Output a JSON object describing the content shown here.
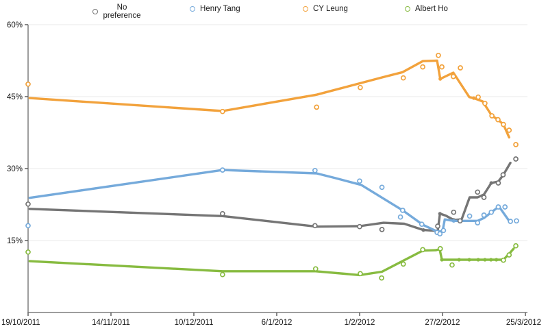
{
  "page": {
    "background": "#ffffff",
    "title": ""
  },
  "colors": {
    "grid": "#e8e8e8",
    "axis": "#7d7d7d",
    "tick": "#5f5f5f",
    "label": "#161616"
  },
  "chart_data": {
    "type": "line",
    "title": "",
    "xlabel": "",
    "ylabel": "",
    "legend_position": "top",
    "grid": true,
    "x_axis": {
      "tick_labels": [
        "19/10/2011",
        "14/11/2011",
        "10/12/2011",
        "6/1/2012",
        "1/2/2012",
        "27/2/2012",
        "25/3/2012"
      ],
      "tick_days": [
        0,
        26,
        52,
        78,
        104,
        130,
        156
      ],
      "unit": "day offset from 19/10/2011"
    },
    "y_axis": {
      "tick_labels": [
        "60%",
        "45%",
        "30%",
        "15%"
      ],
      "tick_values": [
        60,
        45,
        30,
        15
      ],
      "min": 0,
      "max": 60,
      "unit": "%"
    },
    "series": [
      {
        "name": "No preference",
        "color": "#757575",
        "scatter": [
          [
            0,
            22.6
          ],
          [
            61,
            20.6
          ],
          [
            90,
            18.1
          ],
          [
            104,
            17.9
          ],
          [
            111,
            17.3
          ],
          [
            128.5,
            18.0
          ],
          [
            133.5,
            20.9
          ],
          [
            135.5,
            19.1
          ],
          [
            141,
            25.1
          ],
          [
            143,
            24.0
          ],
          [
            147.5,
            27.0
          ],
          [
            149,
            28.7
          ],
          [
            153,
            32.0
          ]
        ],
        "trend": [
          [
            0.5,
            21.6
          ],
          [
            61,
            20.1
          ],
          [
            90.5,
            17.9
          ],
          [
            104,
            18.0
          ],
          [
            111.5,
            18.7
          ],
          [
            118,
            18.5
          ],
          [
            124,
            17.2
          ],
          [
            128.5,
            17.0
          ],
          [
            129.2,
            20.6
          ],
          [
            131,
            20.2
          ],
          [
            133.5,
            19.3
          ],
          [
            136,
            19.4
          ],
          [
            138.5,
            24.0
          ],
          [
            141,
            24.0
          ],
          [
            143,
            24.6
          ],
          [
            145.3,
            27.0
          ],
          [
            147.5,
            27.3
          ],
          [
            149,
            28.6
          ],
          [
            151.3,
            31.2
          ]
        ],
        "trend_dots": [
          [
            124,
            17.2
          ],
          [
            129.2,
            20.6
          ],
          [
            133.5,
            19.3
          ],
          [
            145.3,
            27.0
          ]
        ]
      },
      {
        "name": "Henry Tang",
        "color": "#75aadb",
        "scatter": [
          [
            0,
            18.1
          ],
          [
            61,
            29.7
          ],
          [
            90,
            29.6
          ],
          [
            104,
            27.4
          ],
          [
            111,
            26.1
          ],
          [
            116.8,
            19.9
          ],
          [
            117.5,
            21.3
          ],
          [
            123.5,
            18.4
          ],
          [
            128.3,
            16.7
          ],
          [
            129.2,
            16.4
          ],
          [
            130.3,
            17.1
          ],
          [
            138.5,
            20.1
          ],
          [
            141,
            18.7
          ],
          [
            143,
            20.3
          ],
          [
            145.3,
            20.9
          ],
          [
            147.5,
            22.0
          ],
          [
            149.6,
            22.0
          ],
          [
            151.3,
            19.0
          ],
          [
            153.2,
            19.1
          ]
        ],
        "trend": [
          [
            0.5,
            23.9
          ],
          [
            61,
            29.7
          ],
          [
            90.5,
            29.0
          ],
          [
            96.5,
            28.0
          ],
          [
            104.5,
            26.6
          ],
          [
            117.5,
            21.3
          ],
          [
            123.8,
            18.3
          ],
          [
            128.3,
            16.9
          ],
          [
            130,
            16.9
          ],
          [
            130.7,
            19.4
          ],
          [
            133.5,
            19.1
          ],
          [
            141,
            19.1
          ],
          [
            143,
            19.7
          ],
          [
            147.7,
            22.1
          ],
          [
            151,
            19.0
          ]
        ],
        "trend_dots": [
          [
            61,
            29.7
          ],
          [
            123.8,
            18.3
          ],
          [
            133.5,
            19.1
          ],
          [
            147.7,
            22.1
          ]
        ]
      },
      {
        "name": "CY Leung",
        "color": "#f2a23c",
        "scatter": [
          [
            0,
            47.6
          ],
          [
            61,
            41.9
          ],
          [
            90.5,
            42.8
          ],
          [
            104.2,
            46.9
          ],
          [
            117.7,
            48.9
          ],
          [
            123.8,
            51.2
          ],
          [
            128.7,
            53.6
          ],
          [
            129.8,
            51.2
          ],
          [
            133.4,
            49.2
          ],
          [
            135.6,
            51.0
          ],
          [
            141.2,
            44.9
          ],
          [
            143.3,
            43.6
          ],
          [
            145.5,
            41.0
          ],
          [
            147.4,
            40.2
          ],
          [
            149.1,
            39.2
          ],
          [
            150.9,
            38.0
          ],
          [
            153,
            35.0
          ]
        ],
        "trend": [
          [
            0.5,
            44.7
          ],
          [
            61,
            42.0
          ],
          [
            90.5,
            45.4
          ],
          [
            111,
            49.0
          ],
          [
            117.5,
            50.1
          ],
          [
            123.8,
            52.4
          ],
          [
            128.3,
            52.5
          ],
          [
            129.3,
            48.7
          ],
          [
            133.4,
            50.0
          ],
          [
            138.4,
            44.9
          ],
          [
            139.8,
            44.7
          ],
          [
            142.6,
            44.0
          ],
          [
            145.5,
            41.0
          ],
          [
            147.4,
            40.2
          ],
          [
            149.1,
            39.2
          ],
          [
            150.9,
            36.5
          ]
        ],
        "trend_dots": [
          [
            129.3,
            48.7
          ],
          [
            139.8,
            44.7
          ]
        ]
      },
      {
        "name": "Albert Ho",
        "color": "#87bb40",
        "scatter": [
          [
            0,
            12.6
          ],
          [
            61,
            7.9
          ],
          [
            90.2,
            9.1
          ],
          [
            104.2,
            8.1
          ],
          [
            110.9,
            7.2
          ],
          [
            117.7,
            10.1
          ],
          [
            123.8,
            13.1
          ],
          [
            129.3,
            13.3
          ],
          [
            133,
            9.9
          ],
          [
            149.1,
            10.9
          ],
          [
            150.9,
            12.0
          ],
          [
            153,
            13.9
          ]
        ],
        "trend": [
          [
            0.5,
            10.7
          ],
          [
            61,
            8.6
          ],
          [
            90.2,
            8.6
          ],
          [
            104,
            7.8
          ],
          [
            111,
            8.5
          ],
          [
            123.8,
            12.9
          ],
          [
            128,
            13.0
          ],
          [
            129.1,
            13.2
          ],
          [
            129.8,
            11.0
          ],
          [
            135.2,
            11.0
          ],
          [
            141.2,
            11.0
          ],
          [
            146.9,
            11.0
          ],
          [
            149.1,
            11.0
          ],
          [
            151,
            12.3
          ],
          [
            152.3,
            13.3
          ]
        ],
        "trend_dots": [
          [
            123.8,
            12.9
          ],
          [
            129.8,
            11.0
          ],
          [
            135.2,
            11.0
          ],
          [
            138.4,
            11.0
          ],
          [
            141.2,
            11.0
          ],
          [
            143.3,
            11.0
          ],
          [
            145.2,
            11.0
          ],
          [
            146.9,
            11.0
          ]
        ]
      }
    ]
  },
  "legend": {
    "item_lefts": [
      135,
      277,
      442,
      591
    ],
    "wrap_first": true
  }
}
